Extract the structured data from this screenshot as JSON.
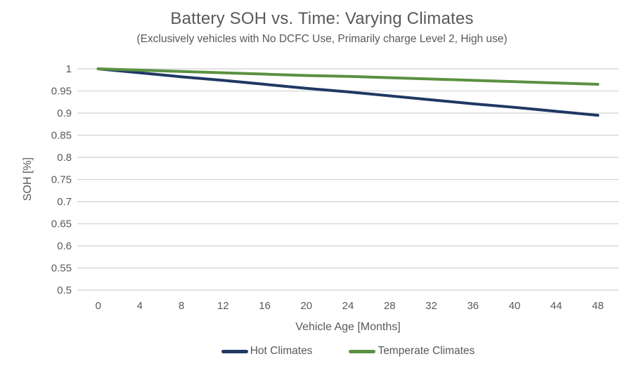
{
  "chart_data": {
    "type": "line",
    "title": "Battery SOH vs. Time: Varying Climates",
    "subtitle": "(Exclusively vehicles with No DCFC Use, Primarily charge Level 2, High use)",
    "xlabel": "Vehicle Age [Months]",
    "ylabel": "SOH [%]",
    "x": [
      0,
      4,
      8,
      12,
      16,
      20,
      24,
      28,
      32,
      36,
      40,
      44,
      48
    ],
    "x_tick_labels": [
      "0",
      "4",
      "8",
      "12",
      "16",
      "20",
      "24",
      "28",
      "32",
      "36",
      "40",
      "44",
      "48"
    ],
    "series": [
      {
        "name": "Hot Climates",
        "color": "#1F3864",
        "values": [
          1.0,
          0.991,
          0.982,
          0.974,
          0.965,
          0.956,
          0.948,
          0.939,
          0.93,
          0.921,
          0.913,
          0.904,
          0.895
        ]
      },
      {
        "name": "Temperate Climates",
        "color": "#5A9141",
        "values": [
          1.0,
          0.997,
          0.994,
          0.991,
          0.988,
          0.985,
          0.983,
          0.98,
          0.977,
          0.974,
          0.971,
          0.968,
          0.965
        ]
      }
    ],
    "ylim": [
      0.5,
      1.0
    ],
    "y_ticks": [
      "1",
      "0.95",
      "0.9",
      "0.85",
      "0.8",
      "0.75",
      "0.7",
      "0.65",
      "0.6",
      "0.55",
      "0.5"
    ],
    "grid": "horizontal",
    "legend_position": "bottom",
    "colors": {
      "background": "#FFFFFF",
      "text": "#595959",
      "gridline": "#D9D9D9"
    }
  }
}
